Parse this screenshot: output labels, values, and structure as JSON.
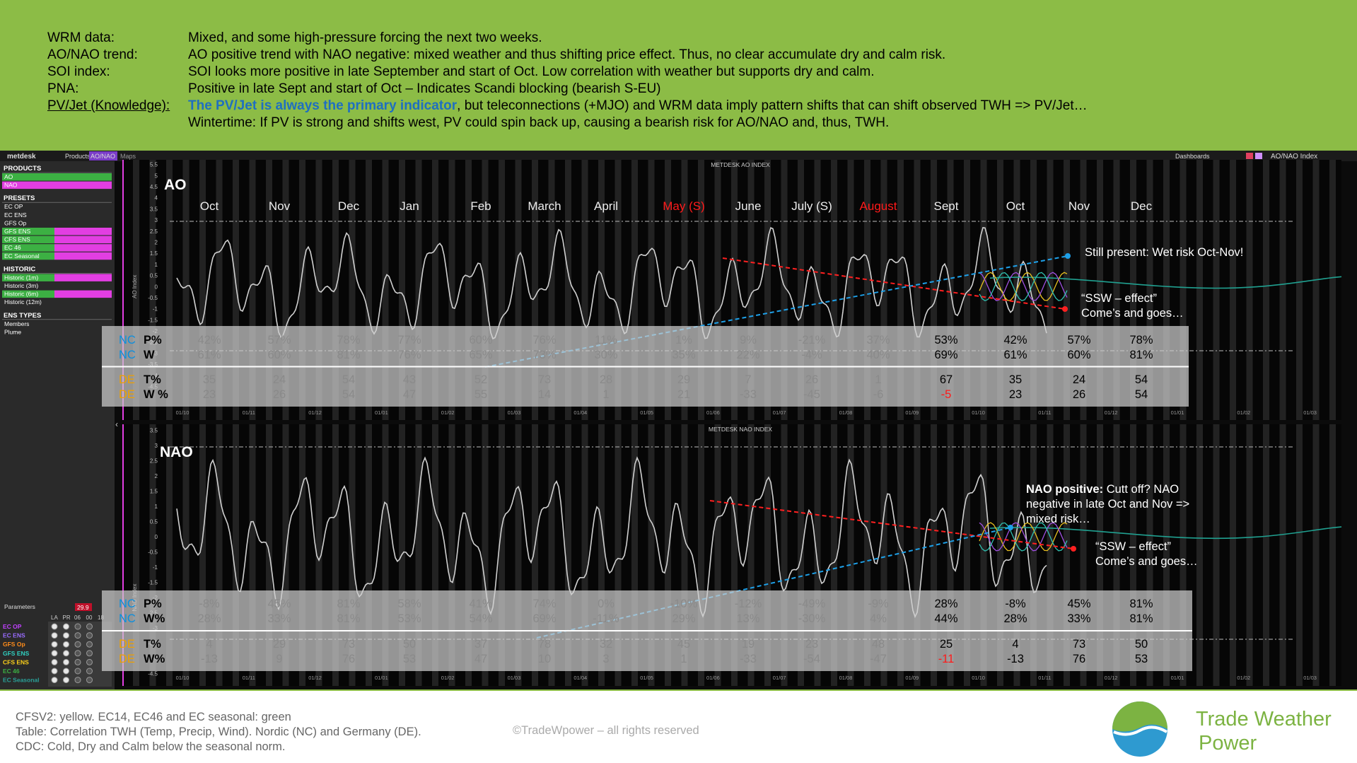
{
  "header": {
    "rows": [
      {
        "label": "WRM data:",
        "text": "Mixed, and some high-pressure forcing the next two weeks."
      },
      {
        "label": "AO/NAO trend:",
        "text": "AO positive trend with NAO negative: mixed weather and thus shifting price effect. Thus, no clear accumulate dry and calm risk."
      },
      {
        "label": "SOI index:",
        "text": "SOI looks more positive in late September and start of Oct. Low correlation with weather but supports dry and calm."
      },
      {
        "label": "PNA:",
        "text": "Positive in late Sept and start of Oct –  Indicates Scandi blocking (bearish S-EU)"
      },
      {
        "label": "PV/Jet (Knowledge):",
        "highlight": "The PV/Jet is always the primary indicator",
        "text": ", but teleconnections (+MJO) and WRM data imply pattern shifts that can shift observed TWH => PV/Jet…"
      },
      {
        "text": "Wintertime: If PV is strong and shifts west, PV could spin back up, causing a bearish risk for AO/NAO and, thus, TWH."
      }
    ]
  },
  "toolbar": {
    "brand": "metdesk",
    "products": "Products",
    "active_tab": "AO/NAO",
    "maps": "Maps",
    "dashboards": "Dashboards",
    "page": "AO/NAO Index"
  },
  "sidebar": {
    "sections": [
      {
        "title": "PRODUCTS",
        "items": [
          {
            "text": "AO",
            "bg": "#3cb043"
          },
          {
            "text": "NAO",
            "bg": "#e23ee2"
          }
        ]
      },
      {
        "title": "PRESETS",
        "items": [
          {
            "text": "EC OP"
          },
          {
            "text": "EC ENS"
          },
          {
            "text": "GFS Op"
          },
          {
            "text": "GFS ENS",
            "bg": "#3cb043"
          },
          {
            "text": "CFS ENS",
            "bg": "#3cb043"
          },
          {
            "text": "EC 46",
            "bg": "#3cb043"
          },
          {
            "text": "EC Seasonal",
            "bg": "#3cb043"
          }
        ]
      },
      {
        "title": "HISTORIC",
        "items": [
          {
            "text": "Historic (1m)",
            "bg": "#3cb043"
          },
          {
            "text": "Historic (3m)"
          },
          {
            "text": "Historic (6m)",
            "bg": "#3cb043"
          },
          {
            "text": "Historic (12m)"
          }
        ]
      },
      {
        "title": "ENS TYPES",
        "items": [
          {
            "text": "Members"
          },
          {
            "text": "Plume"
          }
        ]
      }
    ],
    "parameters": {
      "title": "Parameters",
      "value": "29.9",
      "headers": [
        "LA",
        "PR",
        "06",
        "00",
        "18"
      ],
      "models": [
        {
          "text": "EC OP",
          "color": "#c040ff"
        },
        {
          "text": "EC ENS",
          "color": "#9a6cff"
        },
        {
          "text": "GFS Op",
          "color": "#ff8c1a"
        },
        {
          "text": "GFS ENS",
          "color": "#30d0c0"
        },
        {
          "text": "CFS ENS",
          "color": "#ffd21a"
        },
        {
          "text": "EC 46",
          "color": "#3cb043"
        },
        {
          "text": "EC Seasonal",
          "color": "#2aa198"
        }
      ]
    }
  },
  "panels": [
    {
      "title": "METDESK AO INDEX",
      "label": "AO",
      "axis_label": "AO Index",
      "yticks": [
        "5.5",
        "5",
        "4.5",
        "4",
        "3.5",
        "3",
        "2.5",
        "2",
        "1.5",
        "1",
        "0.5",
        "0",
        "-0.5",
        "-1",
        "-1.5",
        "-2",
        "-2.5",
        "-3",
        "-3.5",
        "-4",
        "-4.5"
      ],
      "dates": [
        "01/10",
        "01/11",
        "01/12",
        "01/01",
        "01/02",
        "01/03",
        "01/04",
        "01/05",
        "01/06",
        "01/07",
        "01/08",
        "01/09",
        "01/10",
        "01/11",
        "01/12",
        "01/01",
        "01/02",
        "01/03"
      ],
      "months": [
        {
          "text": "Oct"
        },
        {
          "text": "Nov"
        },
        {
          "text": "Dec"
        },
        {
          "text": "Jan"
        },
        {
          "text": "Feb"
        },
        {
          "text": "March"
        },
        {
          "text": "April"
        },
        {
          "text": "May (S)",
          "color": "#ff1a1a"
        },
        {
          "text": "June"
        },
        {
          "text": "July (S)"
        },
        {
          "text": "August",
          "color": "#ff1a1a"
        },
        {
          "text": "Sept"
        },
        {
          "text": "Oct"
        },
        {
          "text": "Nov"
        },
        {
          "text": "Dec"
        }
      ],
      "annotations": [
        {
          "lines": [
            "Still present: Wet risk Oct-Nov!"
          ]
        },
        {
          "lines": [
            "“SSW – effect”",
            "Come’s and goes…"
          ]
        }
      ],
      "table": {
        "rows": [
          {
            "region": "NC",
            "region_color": "#0a8fe0",
            "metric": "P%",
            "cells": [
              "42%",
              "57%",
              "78%",
              "77%",
              "60%",
              "76%",
              "11%",
              "1%",
              "9%",
              "-21%",
              "37%",
              "53%",
              "42%",
              "57%",
              "78%"
            ]
          },
          {
            "region": "NC",
            "region_color": "#0a8fe0",
            "metric": "W",
            "cells": [
              "61%",
              "60%",
              "81%",
              "76%",
              "65%",
              "73%",
              "30%",
              "35%",
              "22%",
              "-4%",
              "40%",
              "69%",
              "61%",
              "60%",
              "81%"
            ]
          },
          {
            "region": "DE",
            "region_color": "#f0a000",
            "metric": "T%",
            "cells": [
              "35",
              "24",
              "54",
              "43",
              "52",
              "73",
              "28",
              "29",
              "7",
              "26",
              "1",
              "67",
              "35",
              "24",
              "54"
            ]
          },
          {
            "region": "DE",
            "region_color": "#f0a000",
            "metric": "W %",
            "cells": [
              "23",
              "26",
              "54",
              "47",
              "55",
              "14",
              "1",
              "21",
              "-33",
              "-45",
              "-6",
              {
                "text": "-5",
                "color": "#ff1a1a"
              },
              "23",
              "26",
              "54"
            ]
          }
        ]
      }
    },
    {
      "title": "METDESK NAO INDEX",
      "label": "NAO",
      "axis_label": "NAO Index",
      "yticks": [
        "3.5",
        "3",
        "2.5",
        "2",
        "1.5",
        "1",
        "0.5",
        "0",
        "-0.5",
        "-1",
        "-1.5",
        "-2",
        "-2.5",
        "-3",
        "-3.5",
        "-4",
        "-4.5"
      ],
      "dates": [
        "01/10",
        "01/11",
        "01/12",
        "01/01",
        "01/02",
        "01/03",
        "01/04",
        "01/05",
        "01/06",
        "01/07",
        "01/08",
        "01/09",
        "01/10",
        "01/11",
        "01/12",
        "01/01",
        "01/02",
        "01/03"
      ],
      "annotations": [
        {
          "heading": "NAO positive:",
          "lines": [
            "Cutt off? NAO",
            "negative in late Oct and Nov =>",
            "mixed risk…"
          ]
        },
        {
          "lines": [
            "“SSW – effect”",
            "Come’s and goes…"
          ]
        }
      ],
      "table": {
        "rows": [
          {
            "region": "NC",
            "region_color": "#0a8fe0",
            "metric": "P%",
            "cells": [
              "-8%",
              "45%",
              "81%",
              "58%",
              "41%",
              "74%",
              "0%",
              "-10%",
              "-12%",
              "-49%",
              "-9%",
              "28%",
              "-8%",
              "45%",
              "81%"
            ]
          },
          {
            "region": "NC",
            "region_color": "#0a8fe0",
            "metric": "W%",
            "cells": [
              "28%",
              "33%",
              "81%",
              "53%",
              "54%",
              "69%",
              "-11%",
              "29%",
              "13%",
              "-30%",
              "4%",
              "44%",
              "28%",
              "33%",
              "81%"
            ]
          },
          {
            "region": "DE",
            "region_color": "#f0a000",
            "metric": "T%",
            "cells": [
              "4",
              "29",
              "73",
              "50",
              "37",
              "78",
              "32",
              "45",
              "19",
              "23",
              "48",
              "25",
              "4",
              "73",
              "50"
            ]
          },
          {
            "region": "DE",
            "region_color": "#f0a000",
            "metric": "W%",
            "cells": [
              "-13",
              "9",
              "76",
              "53",
              "47",
              "10",
              "3",
              "1",
              "-33",
              "-54",
              "-47",
              {
                "text": "-11",
                "color": "#ff1a1a"
              },
              "-13",
              "76",
              "53"
            ]
          }
        ]
      }
    }
  ],
  "footer": {
    "notes": [
      "CFSV2: yellow. EC14, EC46 and EC seasonal: green",
      "Table: Correlation TWH (Temp, Precip, Wind). Nordic (NC) and Germany (DE).",
      "CDC: Cold, Dry and Calm below the seasonal norm."
    ],
    "copyright": "©TradeWpower – all rights reserved",
    "brand": [
      "Trade Weather",
      "Power"
    ]
  }
}
